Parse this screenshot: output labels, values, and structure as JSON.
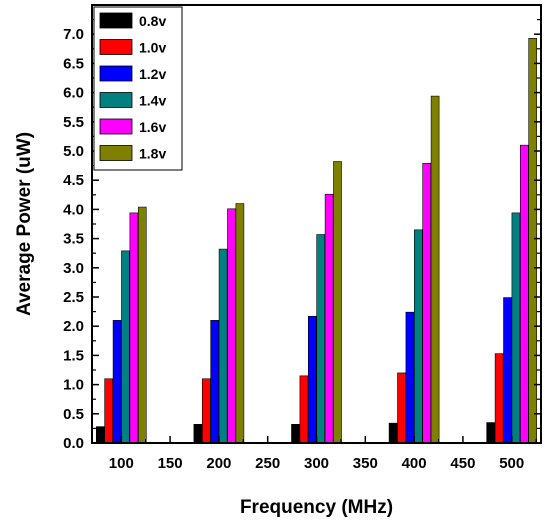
{
  "chart_data": {
    "type": "bar",
    "xlabel": "Frequency (MHz)",
    "ylabel": "Average Power (uW)",
    "xlim": [
      70,
      530
    ],
    "ylim": [
      0,
      7.5
    ],
    "x_ticks": [
      "100",
      "150",
      "200",
      "250",
      "300",
      "350",
      "400",
      "450",
      "500"
    ],
    "y_ticks": [
      "0.0",
      "0.5",
      "1.0",
      "1.5",
      "2.0",
      "2.5",
      "3.0",
      "3.5",
      "4.0",
      "4.5",
      "5.0",
      "5.5",
      "6.0",
      "6.5",
      "7.0"
    ],
    "x": [
      100,
      200,
      300,
      400,
      500
    ],
    "legend_position": "top-left",
    "grid": false,
    "series": [
      {
        "name": "0.8v",
        "color": "#000000",
        "values": [
          0.28,
          0.32,
          0.32,
          0.34,
          0.35
        ]
      },
      {
        "name": "1.0v",
        "color": "#ff0000",
        "values": [
          1.1,
          1.1,
          1.15,
          1.2,
          1.53
        ]
      },
      {
        "name": "1.2v",
        "color": "#0000ff",
        "values": [
          2.1,
          2.1,
          2.17,
          2.24,
          2.49
        ]
      },
      {
        "name": "1.4v",
        "color": "#008080",
        "values": [
          3.29,
          3.32,
          3.57,
          3.65,
          3.94
        ]
      },
      {
        "name": "1.6v",
        "color": "#ff00ff",
        "values": [
          3.94,
          4.01,
          4.26,
          4.79,
          5.1
        ]
      },
      {
        "name": "1.8v",
        "color": "#808000",
        "values": [
          4.04,
          4.1,
          4.82,
          5.94,
          6.93
        ]
      }
    ]
  }
}
